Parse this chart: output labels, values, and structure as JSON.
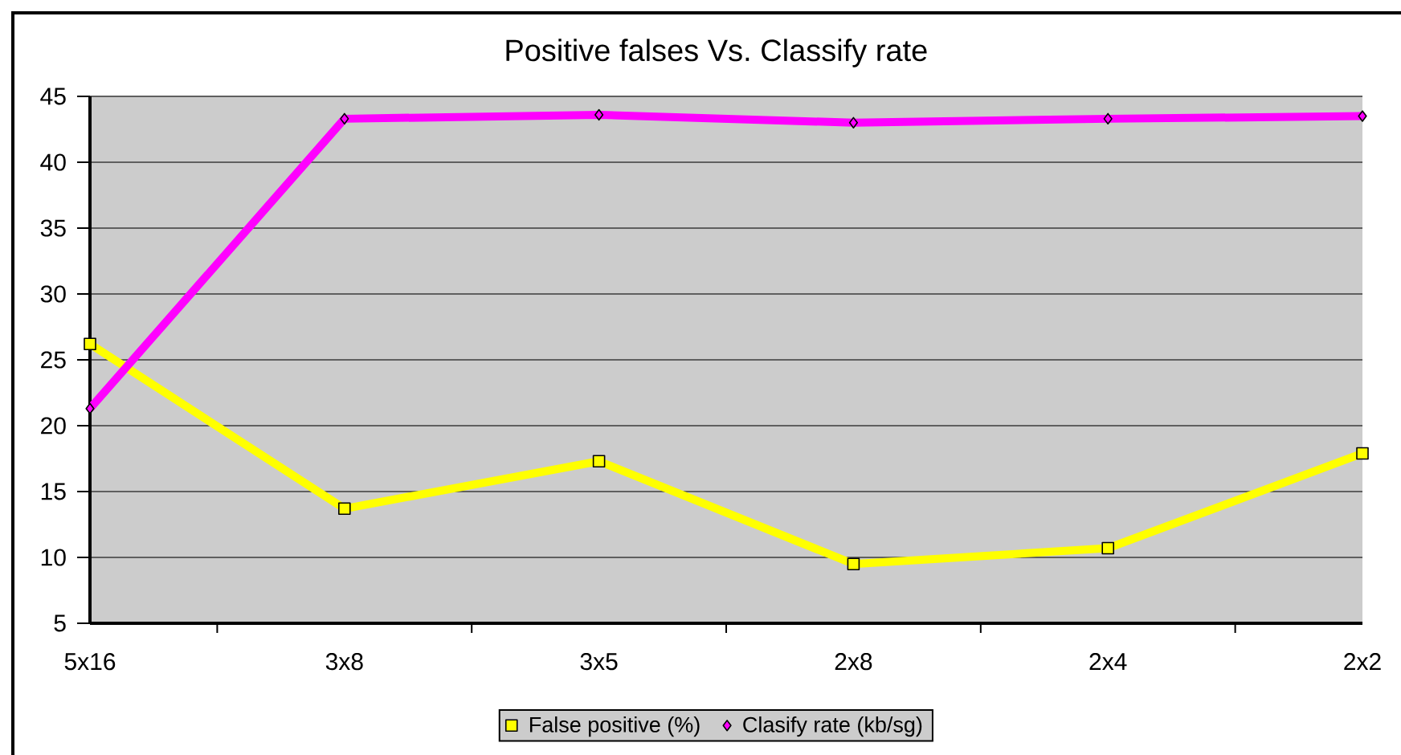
{
  "chart_data": {
    "type": "line",
    "title": "Positive falses Vs. Classify rate",
    "categories": [
      "5x16",
      "3x8",
      "3x5",
      "2x8",
      "2x4",
      "2x2"
    ],
    "series": [
      {
        "name": "False positive (%)",
        "color": "#ffff00",
        "marker": "square",
        "values": [
          26.2,
          13.7,
          17.3,
          9.5,
          10.7,
          17.9
        ]
      },
      {
        "name": "Clasify rate (kb/sg)",
        "color": "#ff00ff",
        "marker": "diamond",
        "values": [
          21.3,
          43.3,
          43.6,
          43.0,
          43.3,
          43.5
        ]
      }
    ],
    "ylim": [
      5,
      45
    ],
    "yticks": [
      5,
      10,
      15,
      20,
      25,
      30,
      35,
      40,
      45
    ],
    "grid": "y",
    "legend": "bottom",
    "line_style": "solid"
  }
}
